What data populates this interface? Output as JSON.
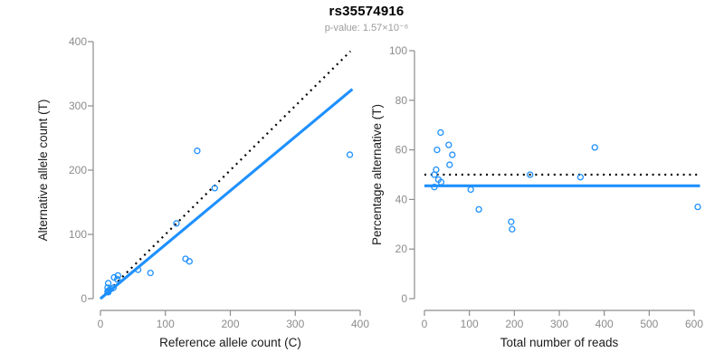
{
  "header": {
    "title": "rs35574916",
    "subtitle": "p-value: 1.57×10⁻⁶"
  },
  "colors": {
    "point_blue": "#1E90FF",
    "fit_blue": "#1E90FF",
    "dotted_black": "#000000",
    "axis_gray": "#8C8C8C",
    "tick_label_gray": "#8C8C8C",
    "axis_title_black": "#1A1A1A",
    "title_black": "#000000",
    "subtitle_gray": "#9B9B9B"
  },
  "chart_data": [
    {
      "type": "scatter",
      "name": "allele-counts",
      "xlabel": "Reference allele count (C)",
      "ylabel": "Alternative allele count (T)",
      "xlim": [
        0,
        400
      ],
      "ylim": [
        0,
        400
      ],
      "xticks": [
        0,
        100,
        200,
        300,
        400
      ],
      "yticks": [
        0,
        100,
        200,
        300,
        400
      ],
      "grid": false,
      "points": [
        [
          11,
          11
        ],
        [
          12,
          10
        ],
        [
          13,
          13
        ],
        [
          16,
          15
        ],
        [
          20,
          17
        ],
        [
          11,
          17
        ],
        [
          12,
          24
        ],
        [
          21,
          33
        ],
        [
          26,
          30
        ],
        [
          27,
          36
        ],
        [
          58,
          45
        ],
        [
          77,
          40
        ],
        [
          117,
          117
        ],
        [
          131,
          62
        ],
        [
          137,
          58
        ],
        [
          149,
          230
        ],
        [
          176,
          172
        ],
        [
          384,
          224
        ]
      ],
      "lines": [
        {
          "name": "identity-line",
          "style": "dotted",
          "color": "#000000",
          "from": [
            0,
            0
          ],
          "to": [
            385,
            385
          ]
        },
        {
          "name": "fit-line",
          "style": "solid",
          "color": "#1E90FF",
          "from": [
            0,
            0
          ],
          "to": [
            388,
            326
          ]
        }
      ]
    },
    {
      "type": "scatter",
      "name": "percentage-vs-reads",
      "xlabel": "Total number of reads",
      "ylabel": "Percentage alternative (T)",
      "xlim": [
        0,
        620
      ],
      "ylim": [
        0,
        100
      ],
      "xticks": [
        0,
        100,
        200,
        300,
        400,
        500,
        600
      ],
      "yticks": [
        0,
        20,
        40,
        60,
        80,
        100
      ],
      "grid": false,
      "points": [
        [
          22,
          50
        ],
        [
          22,
          45
        ],
        [
          26,
          52
        ],
        [
          28,
          60
        ],
        [
          31,
          48
        ],
        [
          36,
          67
        ],
        [
          37,
          47
        ],
        [
          54,
          62
        ],
        [
          56,
          54
        ],
        [
          62,
          58
        ],
        [
          103,
          44
        ],
        [
          121,
          36
        ],
        [
          193,
          31
        ],
        [
          195,
          28
        ],
        [
          235,
          50
        ],
        [
          347,
          49
        ],
        [
          379,
          61
        ],
        [
          608,
          37
        ]
      ],
      "lines": [
        {
          "name": "null-50pct-line",
          "style": "dotted",
          "color": "#000000",
          "from": [
            0,
            50
          ],
          "to": [
            613,
            50
          ]
        },
        {
          "name": "fit-line",
          "style": "solid",
          "color": "#1E90FF",
          "from": [
            0,
            45.5
          ],
          "to": [
            613,
            45.5
          ]
        }
      ]
    }
  ]
}
